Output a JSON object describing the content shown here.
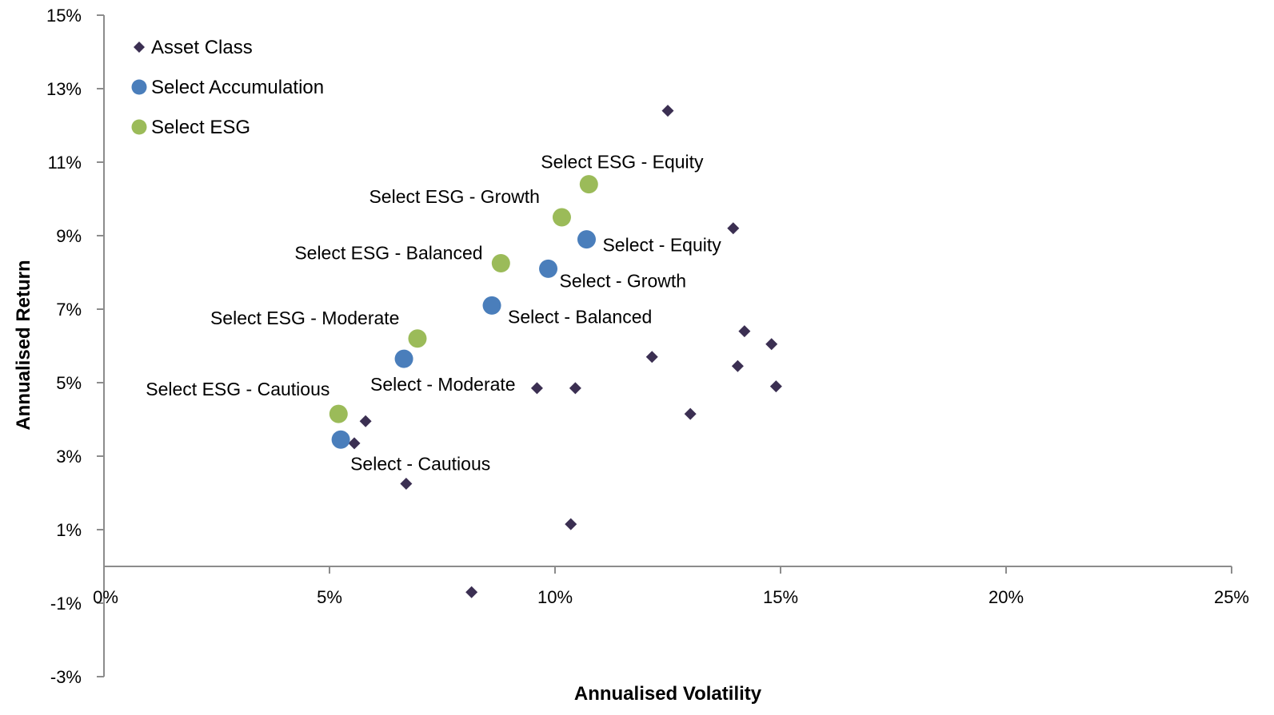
{
  "chart_data": {
    "type": "scatter",
    "title": "",
    "xlabel": "Annualised Volatility",
    "ylabel": "Annualised Return",
    "xlim": [
      0,
      25
    ],
    "ylim": [
      -3,
      15
    ],
    "x_ticks": [
      0,
      5,
      10,
      15,
      20,
      25
    ],
    "y_ticks": [
      -3,
      -1,
      1,
      3,
      5,
      7,
      9,
      11,
      13,
      15
    ],
    "x_tick_labels": [
      "0%",
      "5%",
      "10%",
      "15%",
      "20%",
      "25%"
    ],
    "y_tick_labels": [
      "-3%",
      "-1%",
      "1%",
      "3%",
      "5%",
      "7%",
      "9%",
      "11%",
      "13%",
      "15%"
    ],
    "grid": false,
    "legend_position": "top-left",
    "series": [
      {
        "name": "Asset Class",
        "marker": "diamond",
        "color": "#3b2f52",
        "points": [
          {
            "x": 12.5,
            "y": 12.4
          },
          {
            "x": 13.95,
            "y": 9.2
          },
          {
            "x": 14.2,
            "y": 6.4
          },
          {
            "x": 14.8,
            "y": 6.05
          },
          {
            "x": 12.15,
            "y": 5.7
          },
          {
            "x": 14.05,
            "y": 5.45
          },
          {
            "x": 14.9,
            "y": 4.9
          },
          {
            "x": 13.0,
            "y": 4.15
          },
          {
            "x": 9.6,
            "y": 4.85
          },
          {
            "x": 10.45,
            "y": 4.85
          },
          {
            "x": 5.8,
            "y": 3.95
          },
          {
            "x": 5.55,
            "y": 3.35
          },
          {
            "x": 6.7,
            "y": 2.25
          },
          {
            "x": 10.35,
            "y": 1.15
          },
          {
            "x": 8.15,
            "y": -0.7
          }
        ]
      },
      {
        "name": "Select Accumulation",
        "marker": "circle",
        "color": "#4a7ebb",
        "points": [
          {
            "x": 10.7,
            "y": 8.9,
            "label": "Select - Equity"
          },
          {
            "x": 9.85,
            "y": 8.1,
            "label": "Select - Growth"
          },
          {
            "x": 8.6,
            "y": 7.1,
            "label": "Select - Balanced"
          },
          {
            "x": 6.65,
            "y": 5.65,
            "label": "Select - Moderate"
          },
          {
            "x": 5.25,
            "y": 3.45,
            "label": "Select - Cautious"
          }
        ]
      },
      {
        "name": "Select ESG",
        "marker": "circle",
        "color": "#9bbb59",
        "points": [
          {
            "x": 10.75,
            "y": 10.4,
            "label": "Select ESG - Equity"
          },
          {
            "x": 10.15,
            "y": 9.5,
            "label": "Select ESG - Growth"
          },
          {
            "x": 8.8,
            "y": 8.25,
            "label": "Select ESG - Balanced"
          },
          {
            "x": 6.95,
            "y": 6.2,
            "label": "Select ESG - Moderate"
          },
          {
            "x": 5.2,
            "y": 4.15,
            "label": "Select ESG - Cautious"
          }
        ]
      }
    ]
  }
}
